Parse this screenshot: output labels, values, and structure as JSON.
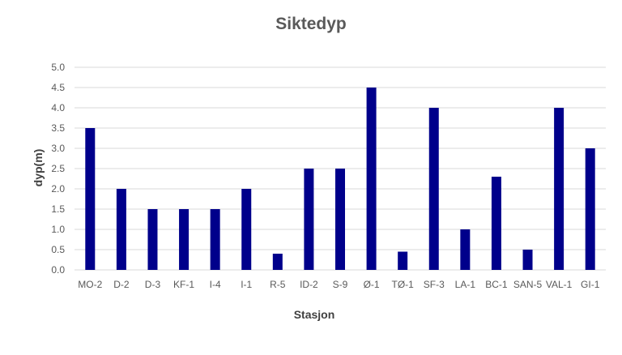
{
  "chart_data": {
    "type": "bar",
    "title": "Siktedyp",
    "xlabel": "Stasjon",
    "ylabel": "dyp(m)",
    "categories": [
      "MO-2",
      "D-2",
      "D-3",
      "KF-1",
      "I-4",
      "I-1",
      "R-5",
      "ID-2",
      "S-9",
      "Ø-1",
      "TØ-1",
      "SF-3",
      "LA-1",
      "BC-1",
      "SAN-5",
      "VAL-1",
      "GI-1"
    ],
    "values": [
      3.5,
      2.0,
      1.5,
      1.5,
      1.5,
      2.0,
      0.4,
      2.5,
      2.5,
      4.5,
      0.45,
      4.0,
      1.0,
      2.3,
      0.5,
      4.0,
      3.0
    ],
    "ylim": [
      0,
      5
    ],
    "yticks": [
      "0.0",
      "0.5",
      "1.0",
      "1.5",
      "2.0",
      "2.5",
      "3.0",
      "3.5",
      "4.0",
      "4.5",
      "5.0"
    ],
    "grid": true,
    "bar_color": "#00008b"
  }
}
